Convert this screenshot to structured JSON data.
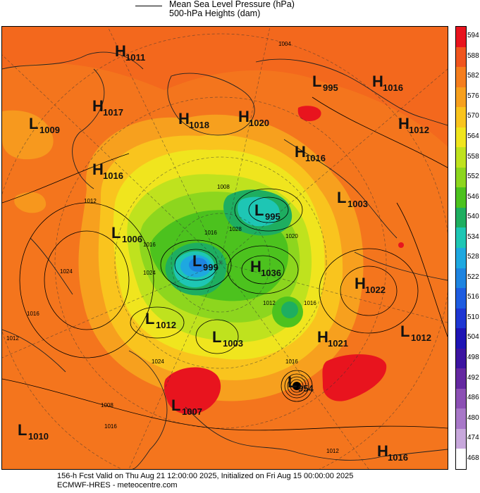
{
  "legend": {
    "line1": "Mean Sea Level Pressure (hPa)",
    "line2": "500-hPa Heights (dam)"
  },
  "colorbar": {
    "levels": [
      "594",
      "588",
      "582",
      "576",
      "570",
      "564",
      "558",
      "552",
      "546",
      "540",
      "534",
      "528",
      "522",
      "516",
      "510",
      "504",
      "498",
      "492",
      "486",
      "480",
      "474",
      "468"
    ],
    "colors": [
      "#e8141e",
      "#f0551e",
      "#f57e1e",
      "#f7a01e",
      "#f9c41e",
      "#f0e51e",
      "#bfe21e",
      "#8dd61e",
      "#4cc21e",
      "#1eae60",
      "#1ec6b4",
      "#1ea8e0",
      "#1e84e0",
      "#1e5ce0",
      "#1e36d2",
      "#1e14b4",
      "#3c14a0",
      "#6428a0",
      "#8c50b4",
      "#a878c8",
      "#c8a8dc",
      "#ffffff"
    ]
  },
  "map": {
    "systems": [
      {
        "letter": "H",
        "value": "1011"
      },
      {
        "letter": "L",
        "value": "995"
      },
      {
        "letter": "H",
        "value": "1016"
      },
      {
        "letter": "H",
        "value": "1017"
      },
      {
        "letter": "L",
        "value": "1009"
      },
      {
        "letter": "H",
        "value": "1018"
      },
      {
        "letter": "H",
        "value": "1020"
      },
      {
        "letter": "H",
        "value": "1012"
      },
      {
        "letter": "H",
        "value": "1016"
      },
      {
        "letter": "H",
        "value": "1016"
      },
      {
        "letter": "L",
        "value": "1003"
      },
      {
        "letter": "L",
        "value": "995"
      },
      {
        "letter": "L",
        "value": "1006"
      },
      {
        "letter": "L",
        "value": "999"
      },
      {
        "letter": "H",
        "value": "1036"
      },
      {
        "letter": "H",
        "value": "1022"
      },
      {
        "letter": "L",
        "value": "1012"
      },
      {
        "letter": "L",
        "value": "1003"
      },
      {
        "letter": "H",
        "value": "1021"
      },
      {
        "letter": "L",
        "value": "1012"
      },
      {
        "letter": "L",
        "value": "954"
      },
      {
        "letter": "L",
        "value": "1007"
      },
      {
        "letter": "L",
        "value": "1010"
      },
      {
        "letter": "H",
        "value": "1016"
      }
    ],
    "isobar_labels": [
      "1004",
      "1008",
      "1012",
      "1016",
      "1016",
      "1020",
      "1024",
      "1028",
      "1024",
      "1016",
      "1016",
      "1012",
      "1008",
      "1012",
      "1016",
      "1024",
      "1012",
      "1016"
    ]
  },
  "footer": {
    "line1": "156-h Fcst Valid on Thu Aug 21 12:00:00 2025, Initialized on Fri Aug 15 00:00:00 2025",
    "line2": "ECMWF-HRES  - meteocentre.com"
  }
}
